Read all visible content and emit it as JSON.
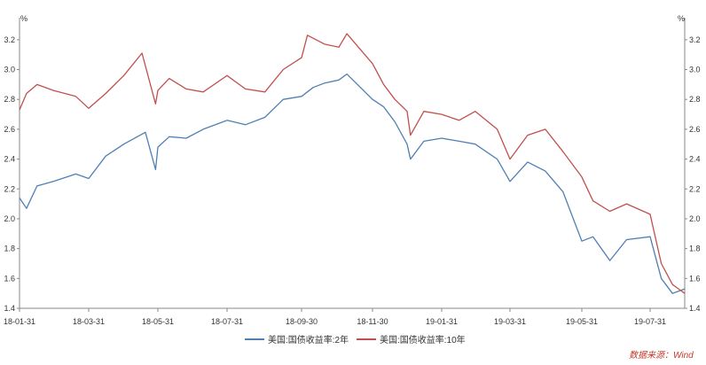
{
  "chart_data": {
    "type": "line",
    "title": "",
    "xlabel": "",
    "ylabel_left": "%",
    "ylabel_right": "%",
    "ylim": [
      1.4,
      3.3
    ],
    "y_ticks": [
      "1.4",
      "1.6",
      "1.8",
      "2.0",
      "2.2",
      "2.4",
      "2.6",
      "2.8",
      "3.0",
      "3.2"
    ],
    "x_tick_labels": [
      "18-01-31",
      "18-03-31",
      "18-05-31",
      "18-07-31",
      "18-09-30",
      "18-11-30",
      "19-01-31",
      "19-03-31",
      "19-05-31",
      "19-07-31"
    ],
    "grid": false,
    "legend_position": "bottom",
    "source_note": "数据来源：Wind",
    "colors": {
      "series_2y": "#4f7fb3",
      "series_10y": "#c0504d",
      "source_note": "#c0392b",
      "axis": "#888888",
      "text": "#333333"
    },
    "series": [
      {
        "name": "美国:国债收益率:2年",
        "key": "series_2y",
        "x": [
          "2018-01-31",
          "2018-02-06",
          "2018-02-15",
          "2018-03-01",
          "2018-03-20",
          "2018-03-31",
          "2018-04-15",
          "2018-05-01",
          "2018-05-20",
          "2018-05-29",
          "2018-05-31",
          "2018-06-10",
          "2018-06-25",
          "2018-07-10",
          "2018-07-31",
          "2018-08-15",
          "2018-08-31",
          "2018-09-15",
          "2018-09-30",
          "2018-10-10",
          "2018-10-20",
          "2018-11-01",
          "2018-11-08",
          "2018-11-30",
          "2018-12-10",
          "2018-12-20",
          "2018-12-31",
          "2019-01-03",
          "2019-01-15",
          "2019-01-31",
          "2019-02-15",
          "2019-03-01",
          "2019-03-20",
          "2019-03-31",
          "2019-04-15",
          "2019-04-30",
          "2019-05-15",
          "2019-05-31",
          "2019-06-10",
          "2019-06-25",
          "2019-07-10",
          "2019-07-31",
          "2019-08-10",
          "2019-08-20",
          "2019-08-31"
        ],
        "values": [
          2.14,
          2.07,
          2.22,
          2.25,
          2.3,
          2.27,
          2.42,
          2.5,
          2.58,
          2.33,
          2.48,
          2.55,
          2.54,
          2.6,
          2.66,
          2.63,
          2.68,
          2.8,
          2.82,
          2.88,
          2.91,
          2.93,
          2.97,
          2.8,
          2.75,
          2.65,
          2.5,
          2.4,
          2.52,
          2.54,
          2.52,
          2.5,
          2.4,
          2.25,
          2.38,
          2.32,
          2.18,
          1.85,
          1.88,
          1.72,
          1.86,
          1.88,
          1.6,
          1.5,
          1.53
        ]
      },
      {
        "name": "美国:国债收益率:10年",
        "key": "series_10y",
        "x": [
          "2018-01-31",
          "2018-02-06",
          "2018-02-15",
          "2018-03-01",
          "2018-03-20",
          "2018-03-31",
          "2018-04-15",
          "2018-05-01",
          "2018-05-17",
          "2018-05-29",
          "2018-05-31",
          "2018-06-10",
          "2018-06-25",
          "2018-07-10",
          "2018-07-31",
          "2018-08-15",
          "2018-08-31",
          "2018-09-15",
          "2018-09-30",
          "2018-10-05",
          "2018-10-20",
          "2018-11-01",
          "2018-11-08",
          "2018-11-30",
          "2018-12-10",
          "2018-12-20",
          "2018-12-31",
          "2019-01-03",
          "2019-01-15",
          "2019-01-31",
          "2019-02-15",
          "2019-03-01",
          "2019-03-20",
          "2019-03-31",
          "2019-04-15",
          "2019-04-30",
          "2019-05-15",
          "2019-05-31",
          "2019-06-10",
          "2019-06-25",
          "2019-07-10",
          "2019-07-31",
          "2019-08-10",
          "2019-08-20",
          "2019-08-31"
        ],
        "values": [
          2.73,
          2.84,
          2.9,
          2.86,
          2.82,
          2.74,
          2.84,
          2.96,
          3.11,
          2.77,
          2.86,
          2.94,
          2.87,
          2.85,
          2.96,
          2.87,
          2.85,
          3.0,
          3.08,
          3.23,
          3.17,
          3.15,
          3.24,
          3.04,
          2.9,
          2.8,
          2.72,
          2.56,
          2.72,
          2.7,
          2.66,
          2.72,
          2.6,
          2.4,
          2.56,
          2.6,
          2.45,
          2.28,
          2.12,
          2.05,
          2.1,
          2.03,
          1.7,
          1.56,
          1.5
        ]
      }
    ]
  }
}
